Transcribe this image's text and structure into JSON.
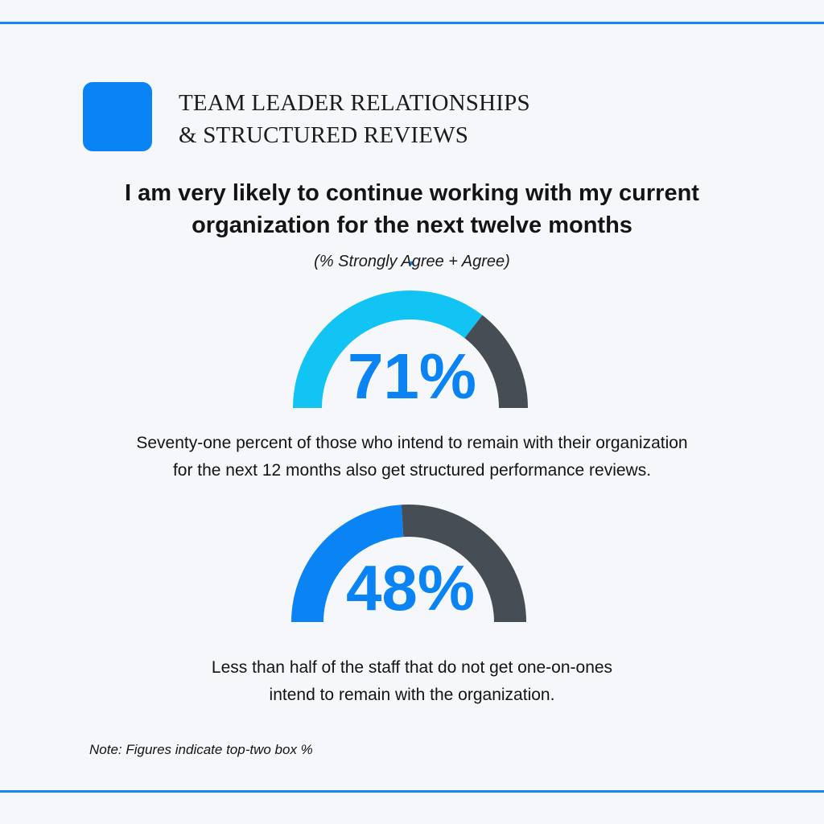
{
  "header": {
    "title_lines": [
      "TEAM LEADER RELATIONSHIPS",
      "& STRUCTURED REVIEWS"
    ]
  },
  "question": {
    "line1": "I am very likely to continue working with my current",
    "line2": "organization for the next twelve months",
    "accent": ".",
    "subtitle": "(% Strongly Agree + Agree)"
  },
  "gauges": [
    {
      "label": "71%",
      "caption_lines": [
        "Seventy-one percent of those who intend to remain with their organization",
        "for the next 12 months also get structured performance reviews."
      ]
    },
    {
      "label": "48%",
      "caption_lines": [
        "Less than half of the staff that do not get one-on-ones",
        "intend to remain with the organization."
      ]
    }
  ],
  "note": "Note: Figures indicate top-two box %",
  "colors": {
    "accent_blue": "#0a84f5",
    "gauge1_fill": "#12c4f4",
    "gauge2_fill": "#0a84f5",
    "gauge_remainder": "#474d55",
    "rule": "#1a86f0"
  },
  "chart_data": [
    {
      "type": "pie",
      "style": "semi-circle gauge",
      "values": [
        71,
        29
      ],
      "label": "71%",
      "fill_color": "#12c4f4",
      "remainder_color": "#474d55"
    },
    {
      "type": "pie",
      "style": "semi-circle gauge",
      "values": [
        48,
        52
      ],
      "label": "48%",
      "fill_color": "#0a84f5",
      "remainder_color": "#474d55"
    }
  ]
}
